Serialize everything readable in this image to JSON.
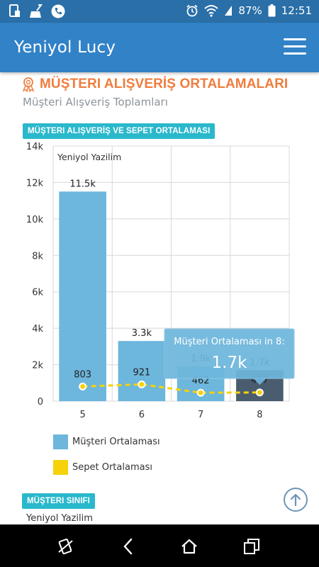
{
  "status_bar": {
    "battery": "87%",
    "time": "12:51"
  },
  "app_bar": {
    "title": "Yeniyol Lucy"
  },
  "section": {
    "title": "MÜŞTERI ALIŞVERİŞ ORTALAMALARI",
    "subtitle": "Müşteri Alışveriş Toplamları"
  },
  "chart_badge": "MÜŞTERI ALIŞVERİŞ VE SEPET ORTALAMASI",
  "chart_data": {
    "type": "bar",
    "subtitle_in_plot": "Yeniyol Yazilim",
    "categories": [
      "5",
      "6",
      "7",
      "8"
    ],
    "ylim": [
      0,
      14000
    ],
    "yticks": [
      0,
      2000,
      4000,
      6000,
      8000,
      10000,
      12000,
      14000
    ],
    "ytick_labels": [
      "0",
      "2k",
      "4k",
      "6k",
      "8k",
      "10k",
      "12k",
      "14k"
    ],
    "grid": true,
    "series": [
      {
        "name": "Müşteri Ortalaması",
        "type": "bar",
        "color": "#6db6dc",
        "highlight_color": "#4a5d6e",
        "values": [
          11500,
          3300,
          1900,
          1700
        ],
        "labels": [
          "11.5k",
          "3.3k",
          "1.9k",
          "1.7k"
        ]
      },
      {
        "name": "Sepet Ortalaması",
        "type": "line",
        "color": "#f6d20a",
        "values": [
          803,
          921,
          462,
          477
        ],
        "labels": [
          "803",
          "921",
          "462",
          "477"
        ]
      }
    ],
    "tooltip": {
      "category": "8",
      "title": "Müşteri Ortalaması in 8:",
      "value": "1.7k"
    },
    "legend_position": "bottom-left"
  },
  "sinif_badge": "MÜŞTERI SINIFI",
  "sinif_label": "Yeniyol Yazilim",
  "icons": [
    "notification-icon",
    "cleaner-icon",
    "phone-icon",
    "alarm-icon",
    "wifi-icon",
    "battery-icon",
    "menu-icon",
    "award-icon",
    "arrow-up-icon",
    "rotate-icon",
    "back-icon",
    "home-icon",
    "recents-icon"
  ]
}
